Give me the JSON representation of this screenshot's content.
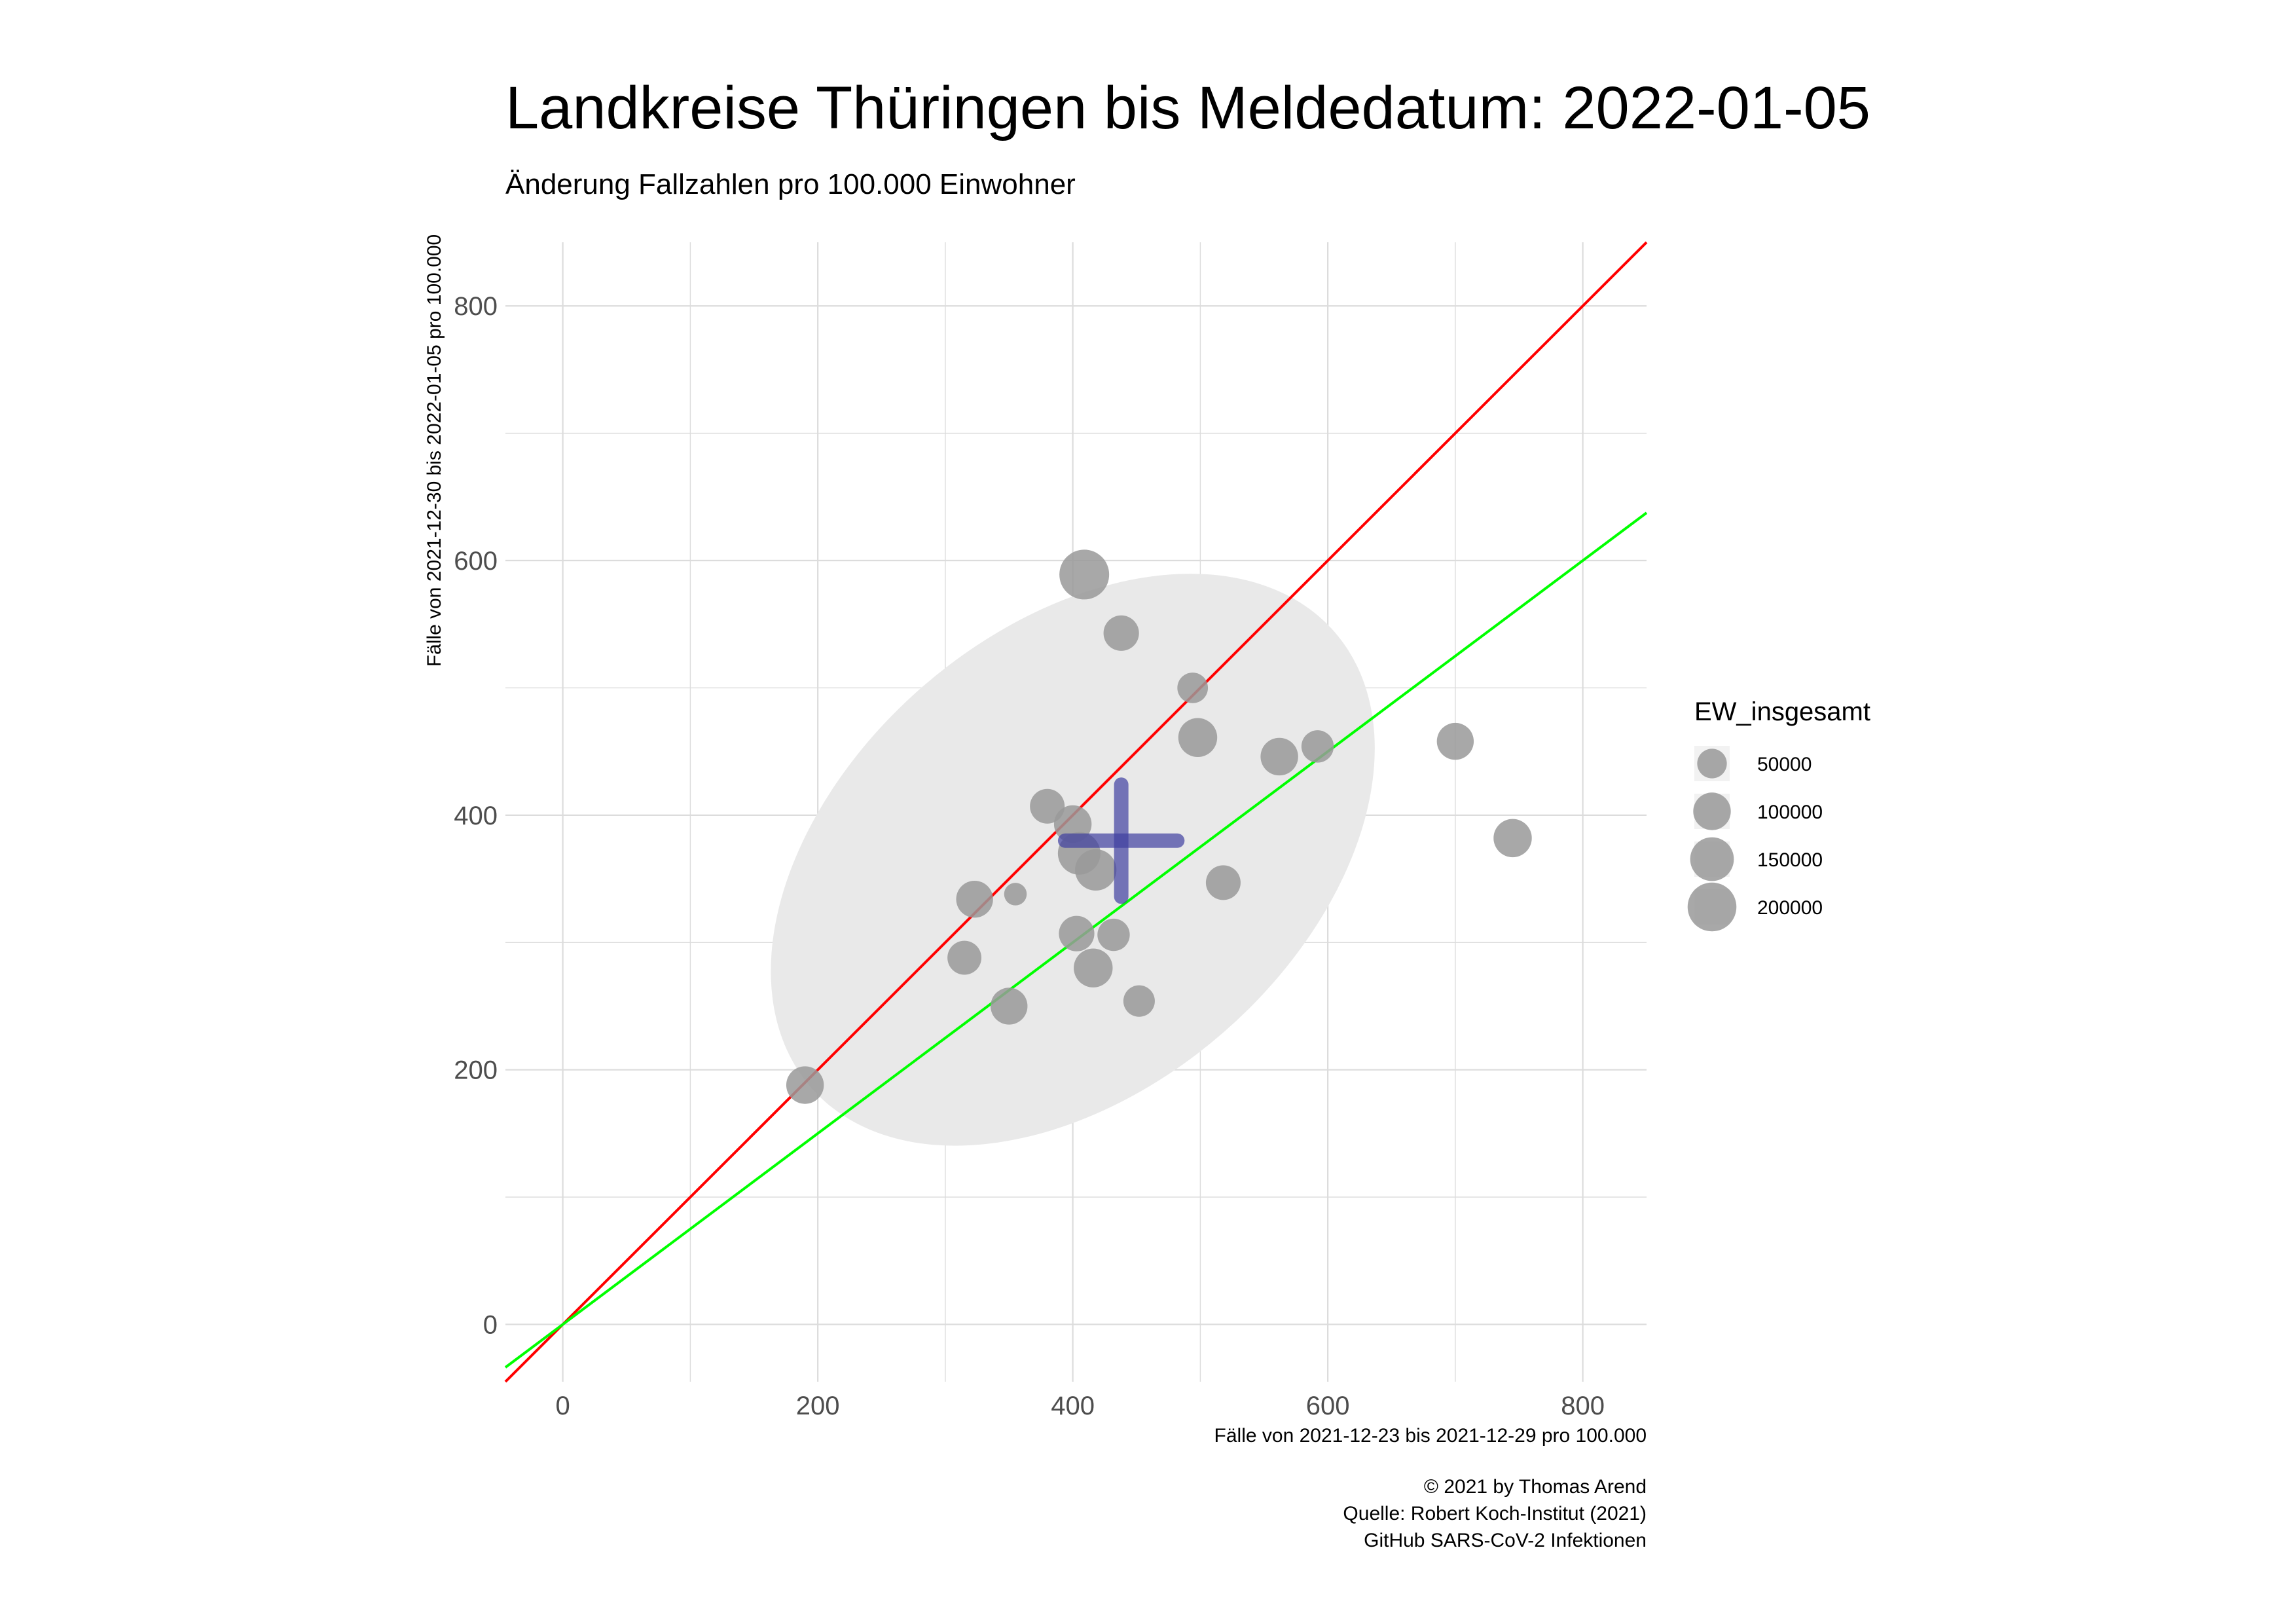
{
  "chart_data": {
    "type": "scatter",
    "title": "Landkreise Thüringen bis Meldedatum: 2022-01-05",
    "subtitle": "Änderung Fallzahlen pro 100.000 Einwohner",
    "xlabel": "Fälle von 2021-12-23 bis 2021-12-29 pro 100.000",
    "ylabel": "Fälle von 2021-12-30 bis 2022-01-05 pro 100.000",
    "xlim": [
      -45,
      850
    ],
    "ylim": [
      -45,
      850
    ],
    "x_ticks": [
      0,
      200,
      400,
      600,
      800
    ],
    "y_ticks": [
      0,
      200,
      400,
      600,
      800
    ],
    "grid": true,
    "legend": {
      "title": "EW_insgesamt",
      "position": "right",
      "entries": [
        {
          "label": "50000",
          "value": 50000
        },
        {
          "label": "100000",
          "value": 100000
        },
        {
          "label": "150000",
          "value": 150000
        },
        {
          "label": "200000",
          "value": 200000
        }
      ]
    },
    "points": [
      {
        "x": 409,
        "y": 589,
        "size": 210000
      },
      {
        "x": 438,
        "y": 543,
        "size": 85000
      },
      {
        "x": 494,
        "y": 500,
        "size": 55000
      },
      {
        "x": 498,
        "y": 461,
        "size": 110000
      },
      {
        "x": 562,
        "y": 446,
        "size": 100000
      },
      {
        "x": 592,
        "y": 454,
        "size": 65000
      },
      {
        "x": 700,
        "y": 458,
        "size": 95000
      },
      {
        "x": 745,
        "y": 382,
        "size": 105000
      },
      {
        "x": 380,
        "y": 407,
        "size": 80000
      },
      {
        "x": 400,
        "y": 393,
        "size": 100000
      },
      {
        "x": 405,
        "y": 370,
        "size": 140000
      },
      {
        "x": 418,
        "y": 357,
        "size": 130000
      },
      {
        "x": 323,
        "y": 334,
        "size": 95000
      },
      {
        "x": 355,
        "y": 338,
        "size": 20000
      },
      {
        "x": 518,
        "y": 347,
        "size": 80000
      },
      {
        "x": 403,
        "y": 307,
        "size": 85000
      },
      {
        "x": 432,
        "y": 306,
        "size": 65000
      },
      {
        "x": 315,
        "y": 288,
        "size": 75000
      },
      {
        "x": 416,
        "y": 280,
        "size": 110000
      },
      {
        "x": 350,
        "y": 250,
        "size": 95000
      },
      {
        "x": 452,
        "y": 254,
        "size": 60000
      },
      {
        "x": 190,
        "y": 188,
        "size": 100000
      }
    ],
    "mean": {
      "x": 438,
      "y": 380,
      "x_error": 44,
      "y_error": 44
    },
    "reference_lines": [
      {
        "name": "identity",
        "slope": 1.0,
        "intercept": 0,
        "color": "#ff0000"
      },
      {
        "name": "regression",
        "slope": 0.75,
        "intercept": 0,
        "color": "#00ff00"
      }
    ],
    "ellipse": {
      "center_x": 400,
      "center_y": 365,
      "color": "#e9e9e9"
    },
    "caption": [
      "© 2021 by Thomas Arend",
      "Quelle: Robert Koch-Institut (2021)",
      "GitHub SARS-CoV-2 Infektionen"
    ],
    "colors": {
      "points": "#999999",
      "mean": "#3f3f9f",
      "grid": "#dcdcdc",
      "ellipse": "#e9e9e9"
    }
  }
}
